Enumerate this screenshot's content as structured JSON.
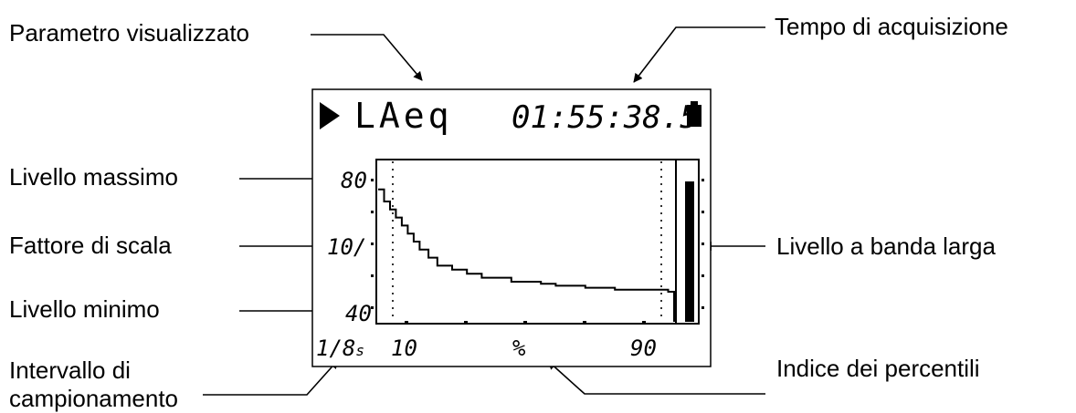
{
  "callouts": {
    "parameter": "Parametro visualizzato",
    "acq_time": "Tempo di acquisizione",
    "max_level": "Livello massimo",
    "scale_factor": "Fattore di scala",
    "min_level": "Livello minimo",
    "interval_line1": "Intervallo di",
    "interval_line2": "campionamento",
    "broadband": "Livello a banda larga",
    "percentile_index": "Indice dei percentili"
  },
  "display": {
    "param": "LAeq",
    "time": "01:55:38.5",
    "y_max": "80",
    "scale": "10/",
    "y_min": "40",
    "interval": "1/8",
    "interval_unit": "s",
    "x_low": "10",
    "x_unit": "%",
    "x_high": "90",
    "play_icon": "play-icon",
    "battery_icon": "battery-icon"
  },
  "chart_data": {
    "type": "line",
    "x": [
      0,
      2,
      4,
      6,
      8,
      10,
      12,
      14,
      17,
      20,
      25,
      30,
      35,
      40,
      45,
      50,
      55,
      60,
      65,
      70,
      75,
      80,
      85,
      90,
      95,
      98,
      100
    ],
    "y": [
      73,
      70,
      68,
      66,
      64,
      62,
      60,
      58,
      56,
      54,
      53,
      52,
      51,
      51,
      50,
      50,
      49.5,
      49,
      49,
      48.5,
      48.5,
      48,
      48,
      48,
      48,
      47.5,
      41
    ],
    "ylim": [
      40,
      80
    ],
    "xlim": [
      0,
      100
    ],
    "broadband_level": 75
  }
}
